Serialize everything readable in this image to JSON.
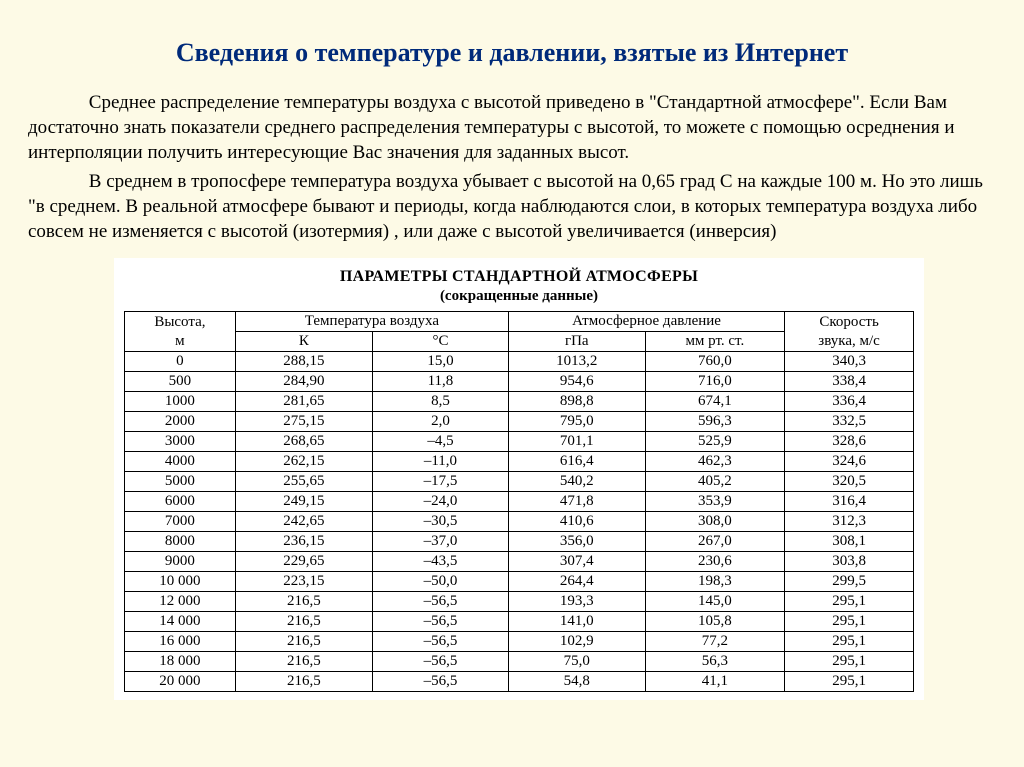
{
  "title": "Сведения о температуре и давлении, взятые из Интернет",
  "paragraphs": [
    "Среднее распределение температуры воздуха с высотой приведено в \"Стандартной атмосфере\". Если Вам достаточно знать показатели среднего распределения температуры с высотой, то можете с помощью осреднения и интерполяции получить интересующие Вас значения для заданных высот.",
    "В среднем в тропосфере температура воздуха убывает с высотой на 0,65 град С на каждые 100 м. Но это лишь \"в среднем. В реальной атмосфере бывают и периоды, когда наблюдаются слои, в которых температура воздуха либо совсем не изменяется с высотой (изотермия) , или даже с высотой увеличивается (инверсия)"
  ],
  "table": {
    "title": "ПАРАМЕТРЫ СТАНДАРТНОЙ АТМОСФЕРЫ",
    "subtitle": "(сокращенные данные)",
    "headers": {
      "height": "Высота,",
      "height2": "м",
      "temp_group": "Температура воздуха",
      "temp_k": "К",
      "temp_c": "°С",
      "press_group": "Атмосферное давление",
      "press_hpa": "гПа",
      "press_mm": "мм рт. ст.",
      "sound": "Скорость",
      "sound2": "звука, м/с"
    },
    "rows": [
      [
        "0",
        "288,15",
        "15,0",
        "1013,2",
        "760,0",
        "340,3"
      ],
      [
        "500",
        "284,90",
        "11,8",
        "954,6",
        "716,0",
        "338,4"
      ],
      [
        "1000",
        "281,65",
        "8,5",
        "898,8",
        "674,1",
        "336,4"
      ],
      [
        "2000",
        "275,15",
        "2,0",
        "795,0",
        "596,3",
        "332,5"
      ],
      [
        "3000",
        "268,65",
        "–4,5",
        "701,1",
        "525,9",
        "328,6"
      ],
      [
        "4000",
        "262,15",
        "–11,0",
        "616,4",
        "462,3",
        "324,6"
      ],
      [
        "5000",
        "255,65",
        "–17,5",
        "540,2",
        "405,2",
        "320,5"
      ],
      [
        "6000",
        "249,15",
        "–24,0",
        "471,8",
        "353,9",
        "316,4"
      ],
      [
        "7000",
        "242,65",
        "–30,5",
        "410,6",
        "308,0",
        "312,3"
      ],
      [
        "8000",
        "236,15",
        "–37,0",
        "356,0",
        "267,0",
        "308,1"
      ],
      [
        "9000",
        "229,65",
        "–43,5",
        "307,4",
        "230,6",
        "303,8"
      ],
      [
        "10 000",
        "223,15",
        "–50,0",
        "264,4",
        "198,3",
        "299,5"
      ],
      [
        "12 000",
        "216,5",
        "–56,5",
        "193,3",
        "145,0",
        "295,1"
      ],
      [
        "14 000",
        "216,5",
        "–56,5",
        "141,0",
        "105,8",
        "295,1"
      ],
      [
        "16 000",
        "216,5",
        "–56,5",
        "102,9",
        "77,2",
        "295,1"
      ],
      [
        "18 000",
        "216,5",
        "–56,5",
        "75,0",
        "56,3",
        "295,1"
      ],
      [
        "20 000",
        "216,5",
        "–56,5",
        "54,8",
        "41,1",
        "295,1"
      ]
    ]
  }
}
